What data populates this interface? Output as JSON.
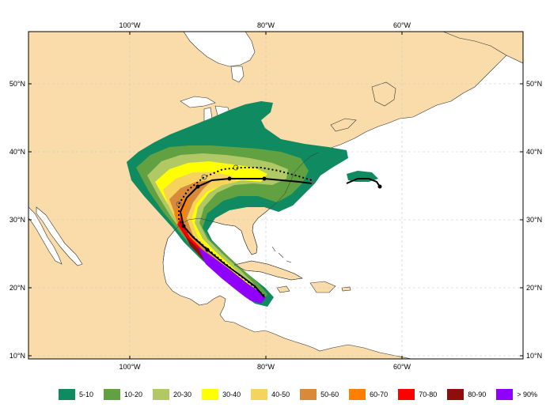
{
  "map": {
    "lon_labels": [
      "100°W",
      "80°W",
      "60°W"
    ],
    "lat_labels": [
      "50°N",
      "40°N",
      "30°N",
      "20°N",
      "10°N"
    ],
    "colors": {
      "land": "#f9dcaa",
      "ocean": "#ffffff",
      "coast": "#333333",
      "grid": "#c8c8c8",
      "track": "#000000"
    }
  },
  "legend": {
    "items": [
      {
        "label": "5-10",
        "color": "#108a60"
      },
      {
        "label": "10-20",
        "color": "#62a142"
      },
      {
        "label": "20-30",
        "color": "#b0c964"
      },
      {
        "label": "30-40",
        "color": "#ffff00"
      },
      {
        "label": "40-50",
        "color": "#f5d35c"
      },
      {
        "label": "50-60",
        "color": "#d88a3a"
      },
      {
        "label": "60-70",
        "color": "#ff8000"
      },
      {
        "label": "70-80",
        "color": "#ff0000"
      },
      {
        "label": "80-90",
        "color": "#8f0d0d"
      },
      {
        "label": "> 90%",
        "color": "#8f00ff"
      }
    ]
  }
}
